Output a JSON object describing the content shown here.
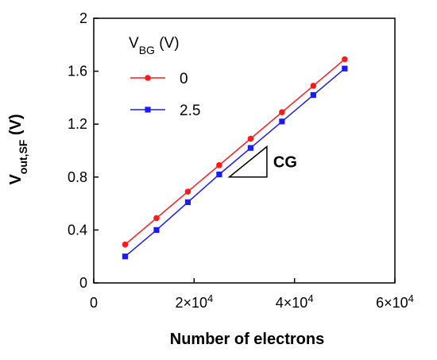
{
  "chart_data": {
    "type": "line",
    "xlabel": "Number of electrons",
    "ylabel_main": "V",
    "ylabel_sub": "out,SF",
    "ylabel_unit": " (V)",
    "xlim": [
      0,
      60000
    ],
    "ylim": [
      0,
      2
    ],
    "xticks": [
      0,
      20000,
      40000,
      60000
    ],
    "xtick_labels": [
      {
        "text": "0",
        "sup": ""
      },
      {
        "text": "2×10",
        "sup": "4"
      },
      {
        "text": "4×10",
        "sup": "4"
      },
      {
        "text": "6×10",
        "sup": "4"
      }
    ],
    "yticks": [
      0,
      0.4,
      0.8,
      1.2,
      1.6,
      2
    ],
    "ytick_labels": [
      "0",
      "0.4",
      "0.8",
      "1.2",
      "1.6",
      "2"
    ],
    "grid": false,
    "legend": {
      "title_main": "V",
      "title_sub": "BG",
      "title_unit": " (V)",
      "placement": "top-left"
    },
    "annotation": {
      "text": "CG",
      "x_from": 27000,
      "y_from": 0.8,
      "x_to": 34500,
      "y_to": 1.03
    },
    "x": [
      6250,
      12500,
      18750,
      25000,
      31250,
      37500,
      43750,
      50000
    ],
    "series": [
      {
        "name": "0",
        "color": "#ff1a1a",
        "marker": "circle",
        "values": [
          0.29,
          0.49,
          0.69,
          0.89,
          1.09,
          1.29,
          1.49,
          1.69
        ]
      },
      {
        "name": "2.5",
        "color": "#1a1aff",
        "marker": "square",
        "values": [
          0.2,
          0.4,
          0.61,
          0.82,
          1.02,
          1.22,
          1.42,
          1.62
        ]
      }
    ]
  }
}
